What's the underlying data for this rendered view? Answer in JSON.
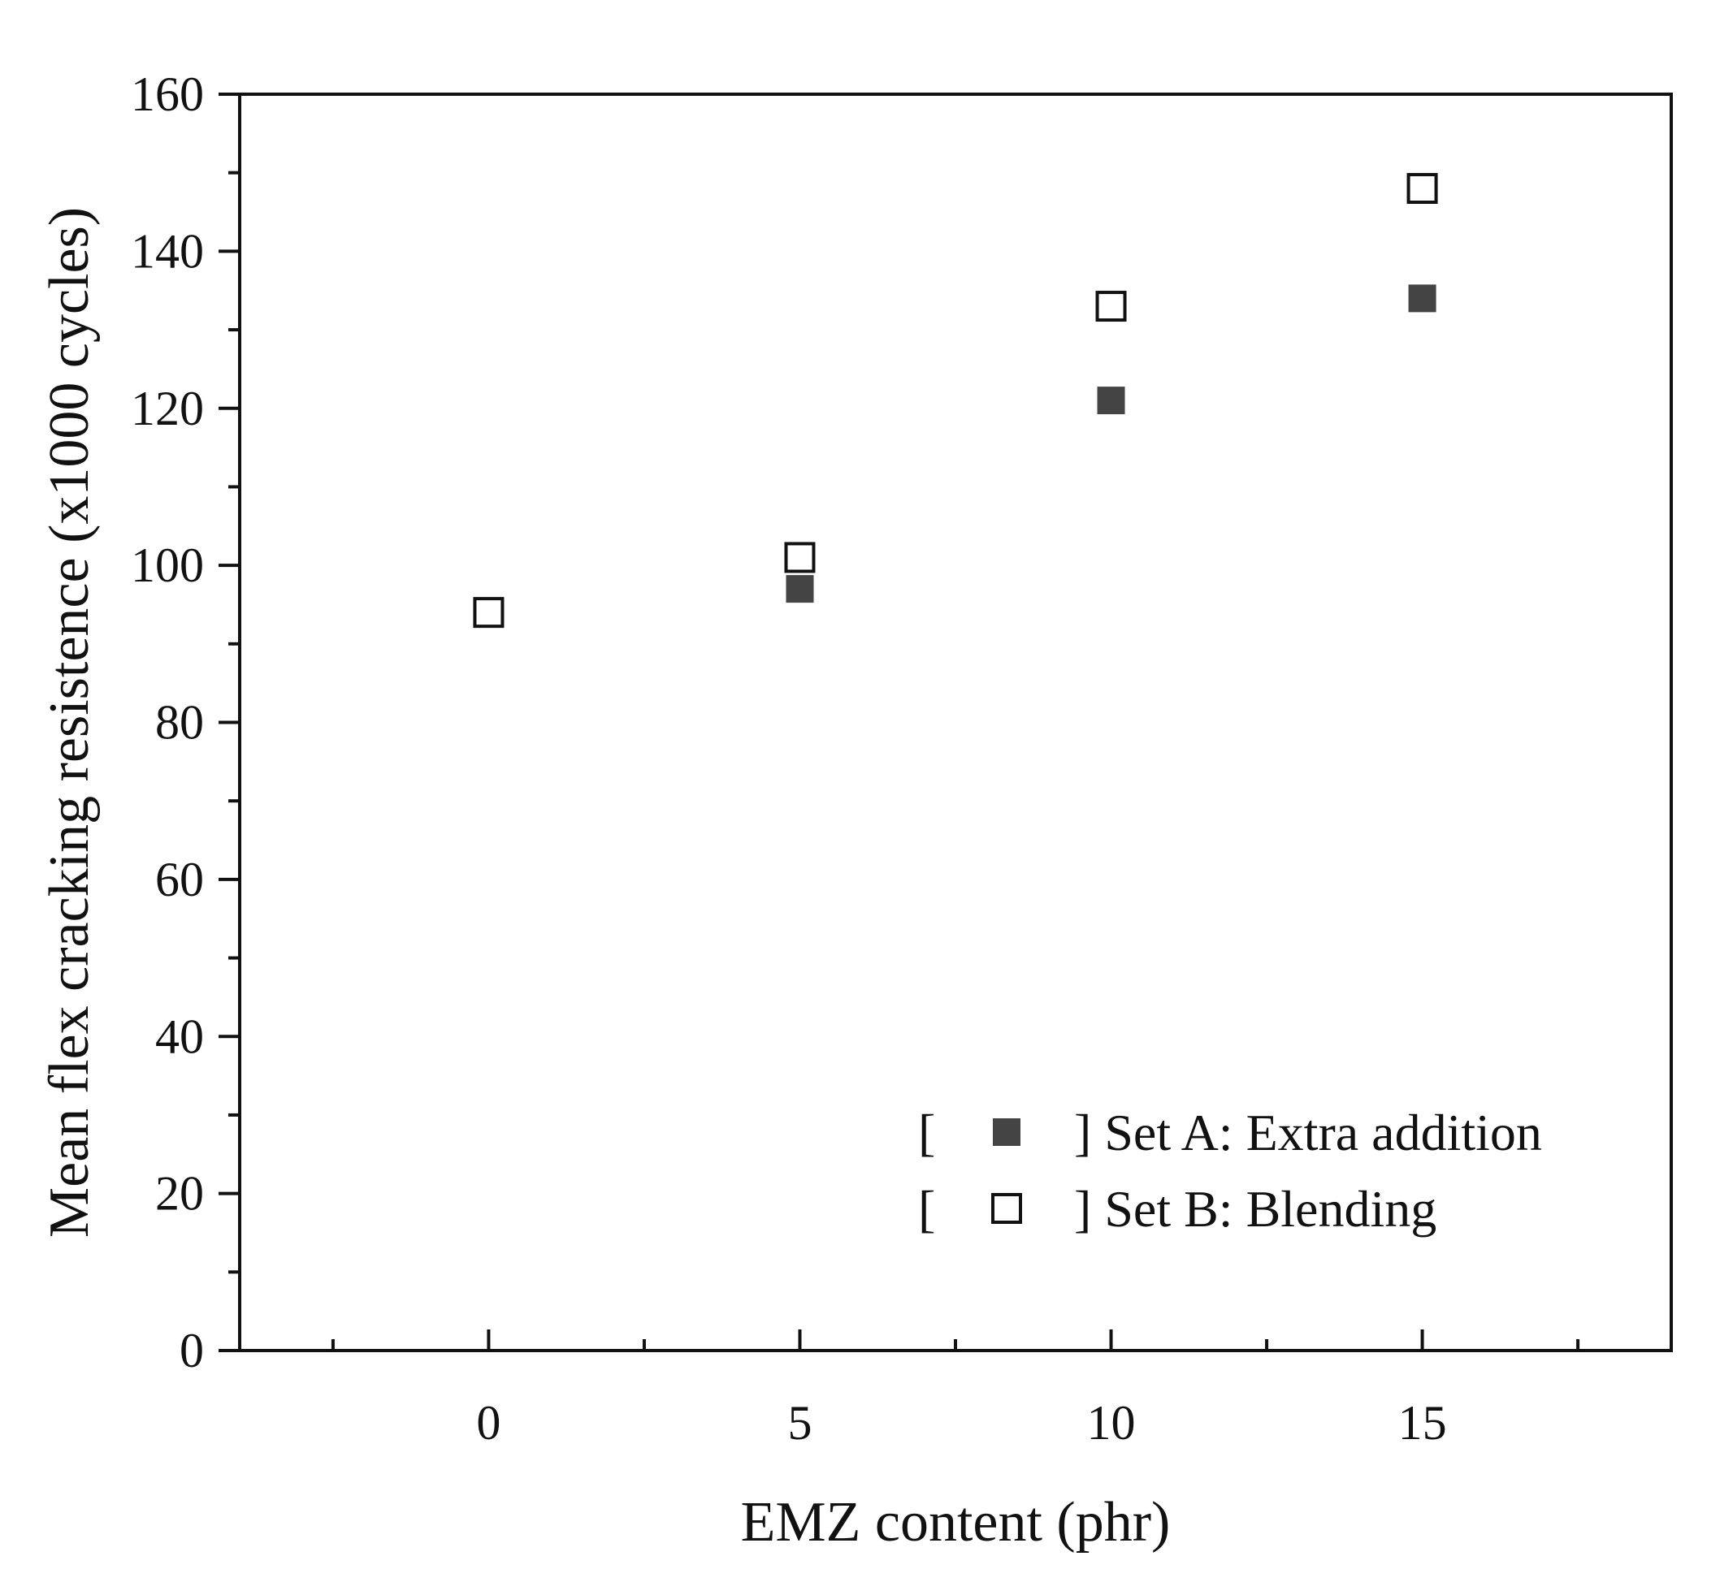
{
  "chart_data": {
    "type": "scatter",
    "title": "",
    "xlabel": "EMZ content (phr)",
    "ylabel": "Mean flex cracking resistence (x1000 cycles)",
    "xlim": [
      -4,
      19
    ],
    "ylim": [
      0,
      160
    ],
    "xticks": [
      0,
      5,
      10,
      15
    ],
    "xticks_minor": [
      -2.5,
      2.5,
      7.5,
      12.5,
      17.5
    ],
    "yticks": [
      0,
      20,
      40,
      60,
      80,
      100,
      120,
      140,
      160
    ],
    "yticks_minor": [
      10,
      30,
      50,
      70,
      90,
      110,
      130,
      150
    ],
    "grid": false,
    "legend_position": "bottom-right",
    "series": [
      {
        "name": "] Set A: Extra addition",
        "legend_prefix": "[",
        "marker": "filled-square",
        "color": "#444444",
        "x": [
          0,
          5,
          10,
          15
        ],
        "y": [
          94,
          97,
          121,
          134
        ]
      },
      {
        "name": "] Set B: Blending",
        "legend_prefix": "[",
        "marker": "open-square",
        "color": "#111111",
        "x": [
          0,
          5,
          10,
          15
        ],
        "y": [
          94,
          101,
          133,
          148
        ]
      }
    ]
  }
}
